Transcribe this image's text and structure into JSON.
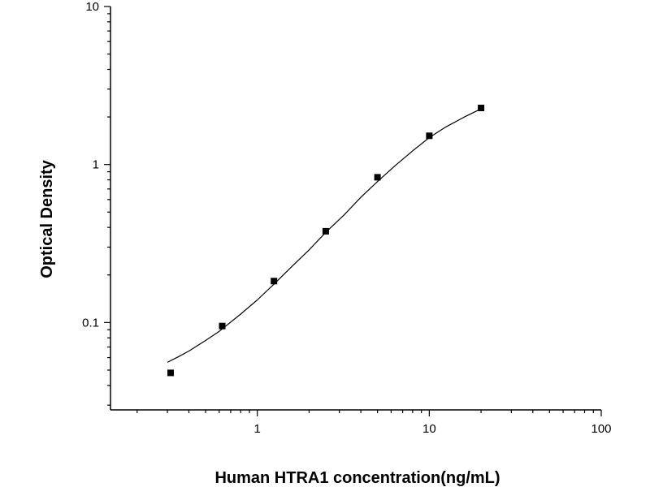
{
  "chart_data": {
    "type": "scatter",
    "title": "",
    "xlabel": "Human HTRA1 concentration(ng/mL)",
    "ylabel": "Optical Density",
    "xscale": "log",
    "yscale": "log",
    "xlim": [
      0.14,
      100
    ],
    "ylim": [
      0.028,
      10
    ],
    "grid": false,
    "x_ticks": [
      {
        "value": 1,
        "label": "1"
      },
      {
        "value": 10,
        "label": "10"
      },
      {
        "value": 100,
        "label": "100"
      }
    ],
    "y_ticks": [
      {
        "value": 0.1,
        "label": "0.1"
      },
      {
        "value": 1,
        "label": "1"
      },
      {
        "value": 10,
        "label": "10"
      }
    ],
    "series": [
      {
        "marker": "square",
        "color": "#000000",
        "x": [
          0.313,
          0.625,
          1.25,
          2.5,
          5,
          10,
          20
        ],
        "y": [
          0.048,
          0.095,
          0.183,
          0.378,
          0.83,
          1.52,
          2.28
        ]
      }
    ],
    "fit_curve": {
      "color": "#000000",
      "x": [
        0.3,
        0.35,
        0.4,
        0.5,
        0.6,
        0.8,
        1.0,
        1.25,
        1.6,
        2.0,
        2.5,
        3.2,
        4.0,
        5.0,
        6.3,
        8.0,
        10,
        12.5,
        16,
        20
      ],
      "y": [
        0.056,
        0.061,
        0.066,
        0.077,
        0.088,
        0.113,
        0.139,
        0.175,
        0.228,
        0.288,
        0.372,
        0.48,
        0.62,
        0.78,
        0.98,
        1.22,
        1.48,
        1.73,
        2.0,
        2.25
      ]
    }
  }
}
